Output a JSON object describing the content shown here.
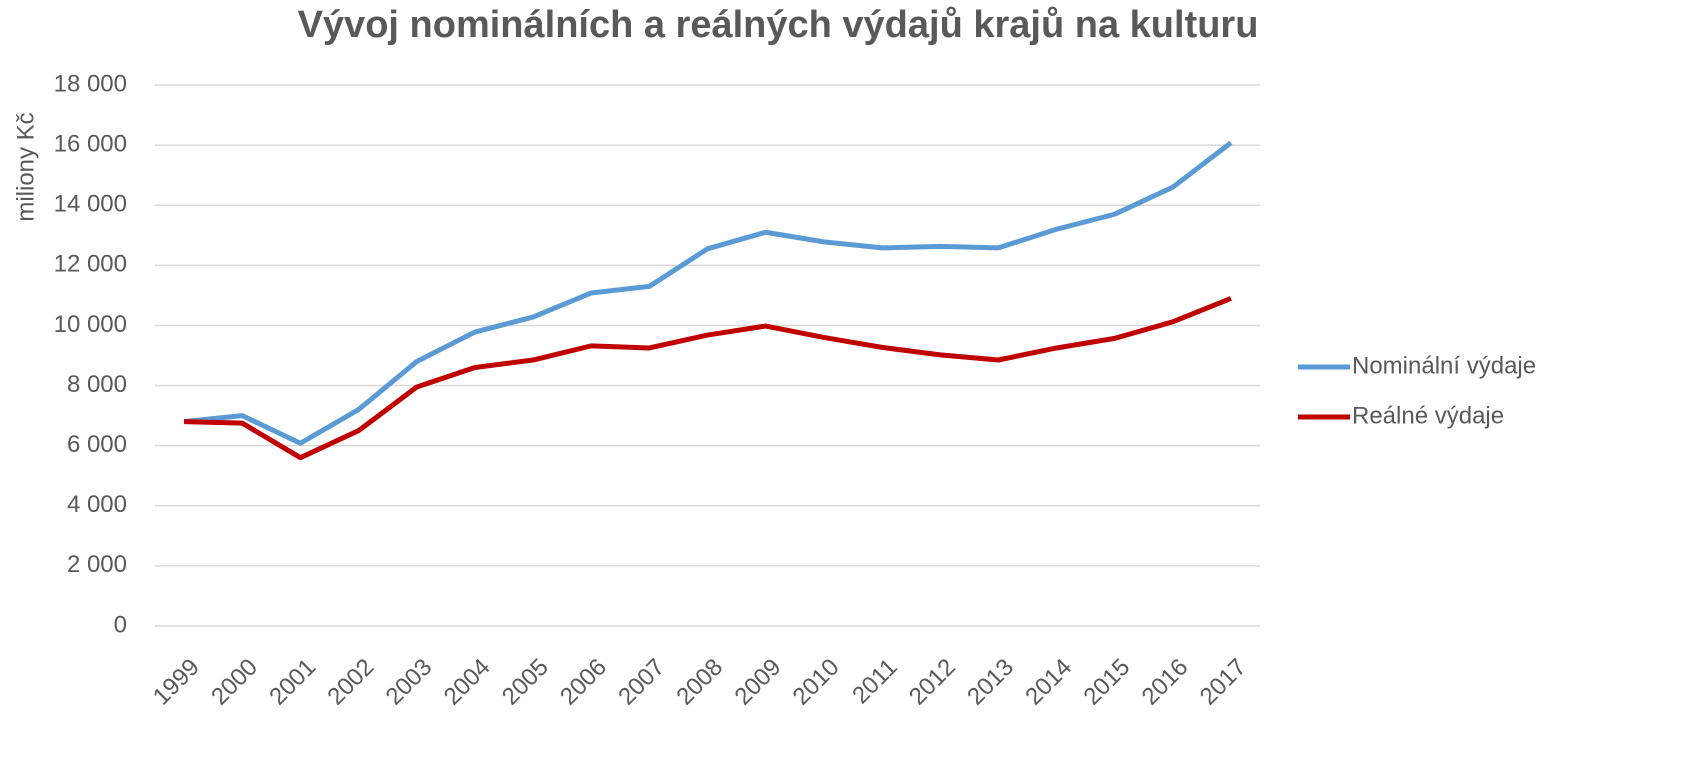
{
  "chart_data": {
    "type": "line",
    "title": "Vývoj  nominálních a reálných výdajů krajů na kulturu",
    "y_axis_label": "miliony Kč",
    "categories": [
      "1999",
      "2000",
      "2001",
      "2002",
      "2003",
      "2004",
      "2005",
      "2006",
      "2007",
      "2008",
      "2009",
      "2010",
      "2011",
      "2012",
      "2013",
      "2014",
      "2015",
      "2016",
      "2017"
    ],
    "series": [
      {
        "name": "Nominální výdaje",
        "color": "#5b9bd5",
        "values": [
          6800,
          7000,
          6080,
          7200,
          8800,
          9780,
          10280,
          11080,
          11300,
          12550,
          13100,
          12780,
          12580,
          12630,
          12580,
          13200,
          13700,
          14600,
          16080
        ]
      },
      {
        "name": "Reálné výdaje",
        "color": "#c00000",
        "values": [
          6800,
          6750,
          5600,
          6500,
          7950,
          8600,
          8850,
          9320,
          9250,
          9680,
          9980,
          9600,
          9270,
          9020,
          8850,
          9250,
          9570,
          10120,
          10900
        ]
      }
    ],
    "ylim": [
      0,
      18000
    ],
    "yticks": [
      0,
      {
        "value": 2000,
        "label": "2 000"
      },
      {
        "value": 4000,
        "label": "4 000"
      },
      {
        "value": 6000,
        "label": "6 000"
      },
      {
        "value": 8000,
        "label": "8 000"
      },
      {
        "value": 10000,
        "label": "10 000"
      },
      {
        "value": 12000,
        "label": "12 000"
      },
      {
        "value": 14000,
        "label": "14 000"
      },
      {
        "value": 16000,
        "label": "16 000"
      },
      {
        "value": 18000,
        "label": "18 000"
      }
    ],
    "grid": true,
    "legend": "right"
  }
}
